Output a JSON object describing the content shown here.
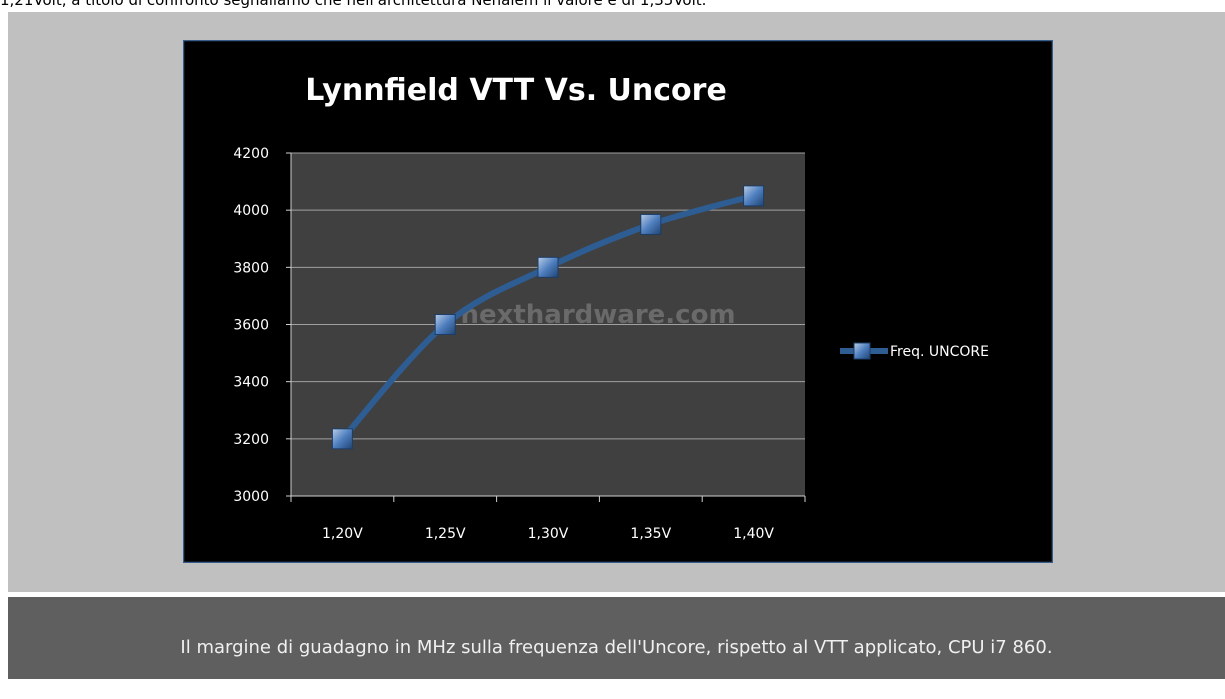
{
  "top_text": "1,21Volt, a titolo di confronto segnaliamo che nell'architettura Nehalem il valore è di 1,35Volt.",
  "caption": "Il margine di guadagno in MHz sulla frequenza dell'Uncore, rispetto al VTT applicato, CPU i7 860.",
  "chart_data": {
    "type": "line",
    "title": "Lynnfield VTT Vs. Uncore",
    "watermark": "nexthardware.com",
    "categories": [
      "1,20V",
      "1,25V",
      "1,30V",
      "1,35V",
      "1,40V"
    ],
    "series": [
      {
        "name": "Freq. UNCORE",
        "color": "#2e5d94",
        "values": [
          3200,
          3600,
          3800,
          3950,
          4050
        ]
      }
    ],
    "ylim": [
      3000,
      4200
    ],
    "yticks": [
      3000,
      3200,
      3400,
      3600,
      3800,
      4000,
      4200
    ],
    "grid": true,
    "legend": "right"
  }
}
